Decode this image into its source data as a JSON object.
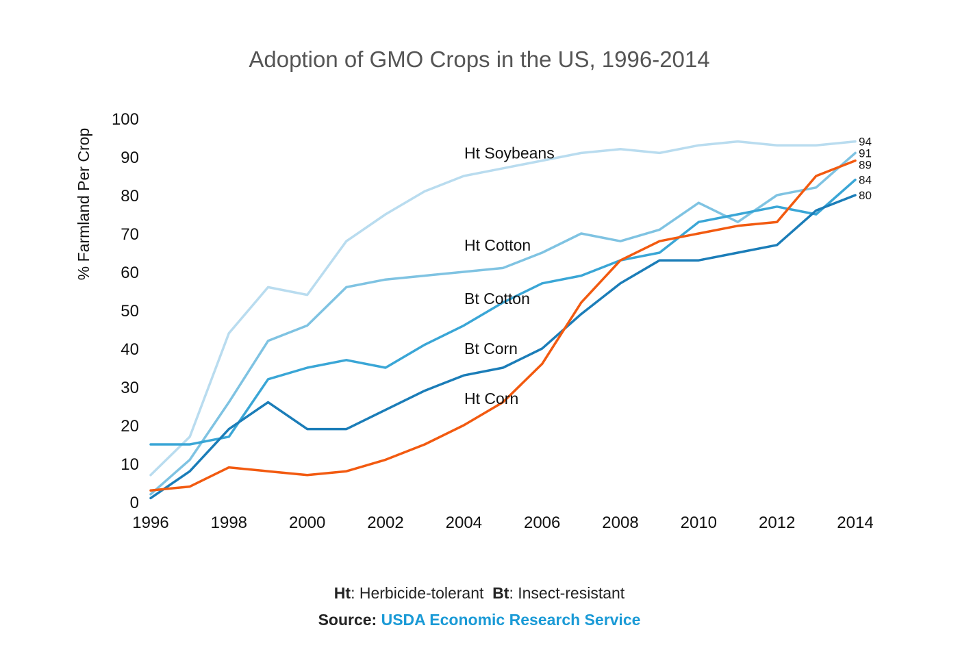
{
  "chart_data": {
    "type": "line",
    "title": "Adoption of GMO Crops in the US, 1996-2014",
    "xlabel": "",
    "ylabel": "% Farmland Per Crop",
    "xlim": [
      1996,
      2014
    ],
    "ylim": [
      0,
      100
    ],
    "x": [
      1996,
      1997,
      1998,
      1999,
      2000,
      2001,
      2002,
      2003,
      2004,
      2005,
      2006,
      2007,
      2008,
      2009,
      2010,
      2011,
      2012,
      2013,
      2014
    ],
    "xticks": [
      "1996",
      "1998",
      "2000",
      "2002",
      "2004",
      "2006",
      "2008",
      "2010",
      "2012",
      "2014"
    ],
    "yticks": [
      "0",
      "10",
      "20",
      "30",
      "40",
      "50",
      "60",
      "70",
      "80",
      "90",
      "100"
    ],
    "grid": false,
    "legend": "none",
    "series": [
      {
        "name": "Ht Soybeans",
        "color": "#b9dcef",
        "end_label": "94",
        "values": [
          7,
          17,
          44,
          56,
          54,
          68,
          75,
          81,
          85,
          87,
          89,
          91,
          92,
          91,
          93,
          94,
          93,
          93,
          94
        ]
      },
      {
        "name": "Ht Cotton",
        "color": "#7fc3e2",
        "end_label": "91",
        "values": [
          2,
          11,
          26,
          42,
          46,
          56,
          58,
          59,
          60,
          61,
          65,
          70,
          68,
          71,
          78,
          73,
          80,
          82,
          91
        ]
      },
      {
        "name": "Bt Cotton",
        "color": "#3aa6d6",
        "end_label": "84",
        "values": [
          15,
          15,
          17,
          32,
          35,
          37,
          35,
          41,
          46,
          52,
          57,
          59,
          63,
          65,
          73,
          75,
          77,
          75,
          84
        ]
      },
      {
        "name": "Bt Corn",
        "color": "#1b7db8",
        "end_label": "80",
        "values": [
          1,
          8,
          19,
          26,
          19,
          19,
          24,
          29,
          33,
          35,
          40,
          49,
          57,
          63,
          63,
          65,
          67,
          76,
          80
        ]
      },
      {
        "name": "Ht Corn",
        "color": "#f25a10",
        "end_label": "89",
        "values": [
          3,
          4,
          9,
          8,
          7,
          8,
          11,
          15,
          20,
          26,
          36,
          52,
          63,
          68,
          70,
          72,
          73,
          85,
          89
        ]
      }
    ]
  },
  "footer": {
    "ht_key": "Ht",
    "ht_text": ": Herbicide-tolerant",
    "bt_key": "Bt",
    "bt_text": ": Insect-resistant",
    "source_label": "Source: ",
    "source_name": "USDA Economic Research Service"
  }
}
